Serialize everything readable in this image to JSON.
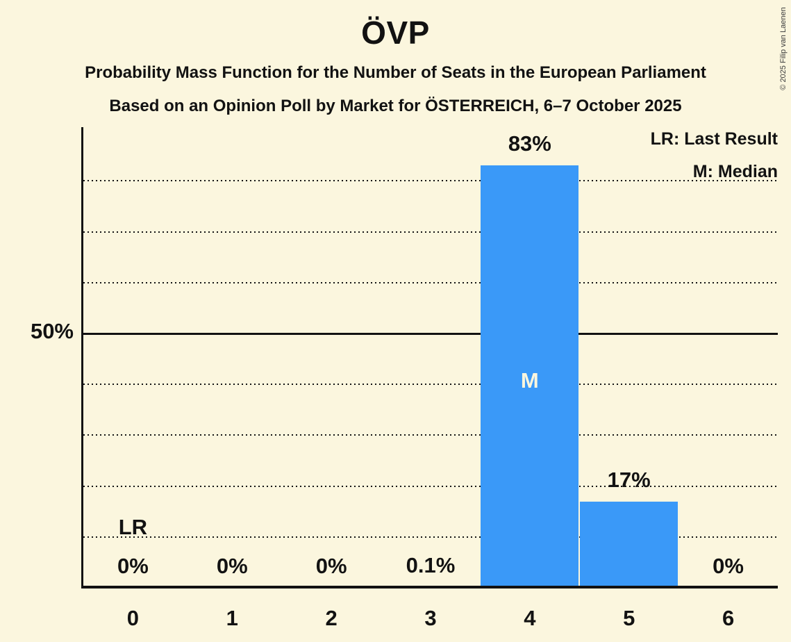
{
  "copyright": "© 2025 Filip van Laenen",
  "chart_data": {
    "type": "bar",
    "title": "ÖVP",
    "subtitle_line1": "Probability Mass Function for the Number of Seats in the European Parliament",
    "subtitle_line2": "Based on an Opinion Poll by Market for ÖSTERREICH, 6–7 October 2025",
    "categories": [
      "0",
      "1",
      "2",
      "3",
      "4",
      "5",
      "6"
    ],
    "values": [
      0,
      0,
      0,
      0.1,
      83,
      17,
      0
    ],
    "bar_labels": [
      "0%",
      "0%",
      "0%",
      "0.1%",
      "83%",
      "17%",
      "0%"
    ],
    "legend": {
      "lr": "LR: Last Result",
      "m": "M: Median"
    },
    "annotations": {
      "last_result": {
        "text": "LR",
        "category": "0"
      },
      "median": {
        "text": "M",
        "category": "4"
      }
    },
    "y_axis": {
      "tick_label": "50%",
      "tick_value": 50,
      "ymax": 90,
      "dotted_gridlines": [
        10,
        20,
        30,
        40,
        60,
        70,
        80
      ],
      "solid_gridline": 50,
      "grid_on": true
    },
    "legend_position": "top-right",
    "colors": {
      "background": "#FBF6DE",
      "bar": "#3A99F8",
      "text": "#121212"
    }
  }
}
